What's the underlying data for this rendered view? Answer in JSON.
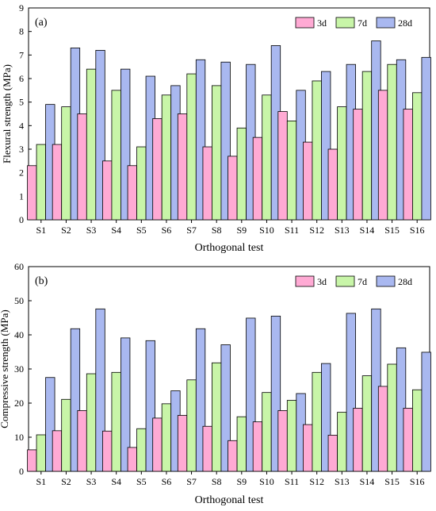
{
  "chart_data": [
    {
      "type": "bar",
      "panel_label": "(a)",
      "xlabel": "Orthogonal test",
      "ylabel": "Flexural strength (MPa)",
      "ylim": [
        0,
        9
      ],
      "yticks": [
        "0",
        "1",
        "2",
        "3",
        "4",
        "5",
        "6",
        "7",
        "8",
        "9"
      ],
      "legend_position": "top-right",
      "grid": false,
      "categories": [
        "S1",
        "S2",
        "S3",
        "S4",
        "S5",
        "S6",
        "S7",
        "S8",
        "S9",
        "S10",
        "S11",
        "S12",
        "S13",
        "S14",
        "S15",
        "S16"
      ],
      "series": [
        {
          "name": "3d",
          "color": "#ffaad4",
          "values": [
            2.3,
            3.2,
            4.5,
            2.5,
            2.3,
            4.3,
            4.5,
            3.1,
            2.7,
            3.5,
            4.6,
            3.3,
            3.0,
            4.7,
            5.5,
            4.7
          ]
        },
        {
          "name": "7d",
          "color": "#c8f5a8",
          "values": [
            3.2,
            4.8,
            6.4,
            5.5,
            3.1,
            5.3,
            6.2,
            5.7,
            3.9,
            5.3,
            4.2,
            5.9,
            4.8,
            6.3,
            6.6,
            5.4
          ]
        },
        {
          "name": "28d",
          "color": "#a9b8f0",
          "values": [
            4.9,
            7.3,
            7.2,
            6.4,
            6.1,
            5.7,
            6.8,
            6.7,
            6.6,
            7.4,
            5.5,
            6.3,
            6.6,
            7.6,
            6.8,
            6.9
          ]
        }
      ]
    },
    {
      "type": "bar",
      "panel_label": "(b)",
      "xlabel": "Orthogonal test",
      "ylabel": "Compressive strength (MPa)",
      "ylim": [
        0,
        60
      ],
      "yticks": [
        "0",
        "10",
        "20",
        "30",
        "40",
        "50",
        "60"
      ],
      "legend_position": "top-right",
      "grid": false,
      "categories": [
        "S1",
        "S2",
        "S3",
        "S4",
        "S5",
        "S6",
        "S7",
        "S8",
        "S9",
        "S10",
        "S11",
        "S12",
        "S13",
        "S14",
        "S15",
        "S16"
      ],
      "series": [
        {
          "name": "3d",
          "color": "#ffaad4",
          "values": [
            6.3,
            11.9,
            17.8,
            11.8,
            7.0,
            15.6,
            16.4,
            13.2,
            9.0,
            14.5,
            17.8,
            13.7,
            10.6,
            18.5,
            24.9,
            18.5
          ]
        },
        {
          "name": "7d",
          "color": "#c8f5a8",
          "values": [
            10.7,
            21.1,
            28.6,
            29.0,
            12.5,
            19.8,
            26.8,
            31.8,
            16.0,
            23.1,
            20.8,
            29.0,
            17.3,
            28.0,
            31.4,
            23.9
          ]
        },
        {
          "name": "28d",
          "color": "#a9b8f0",
          "values": [
            27.5,
            41.8,
            47.6,
            39.1,
            38.3,
            23.6,
            41.8,
            37.1,
            44.9,
            45.5,
            22.8,
            31.6,
            46.3,
            47.6,
            36.2,
            34.9
          ]
        }
      ]
    }
  ]
}
